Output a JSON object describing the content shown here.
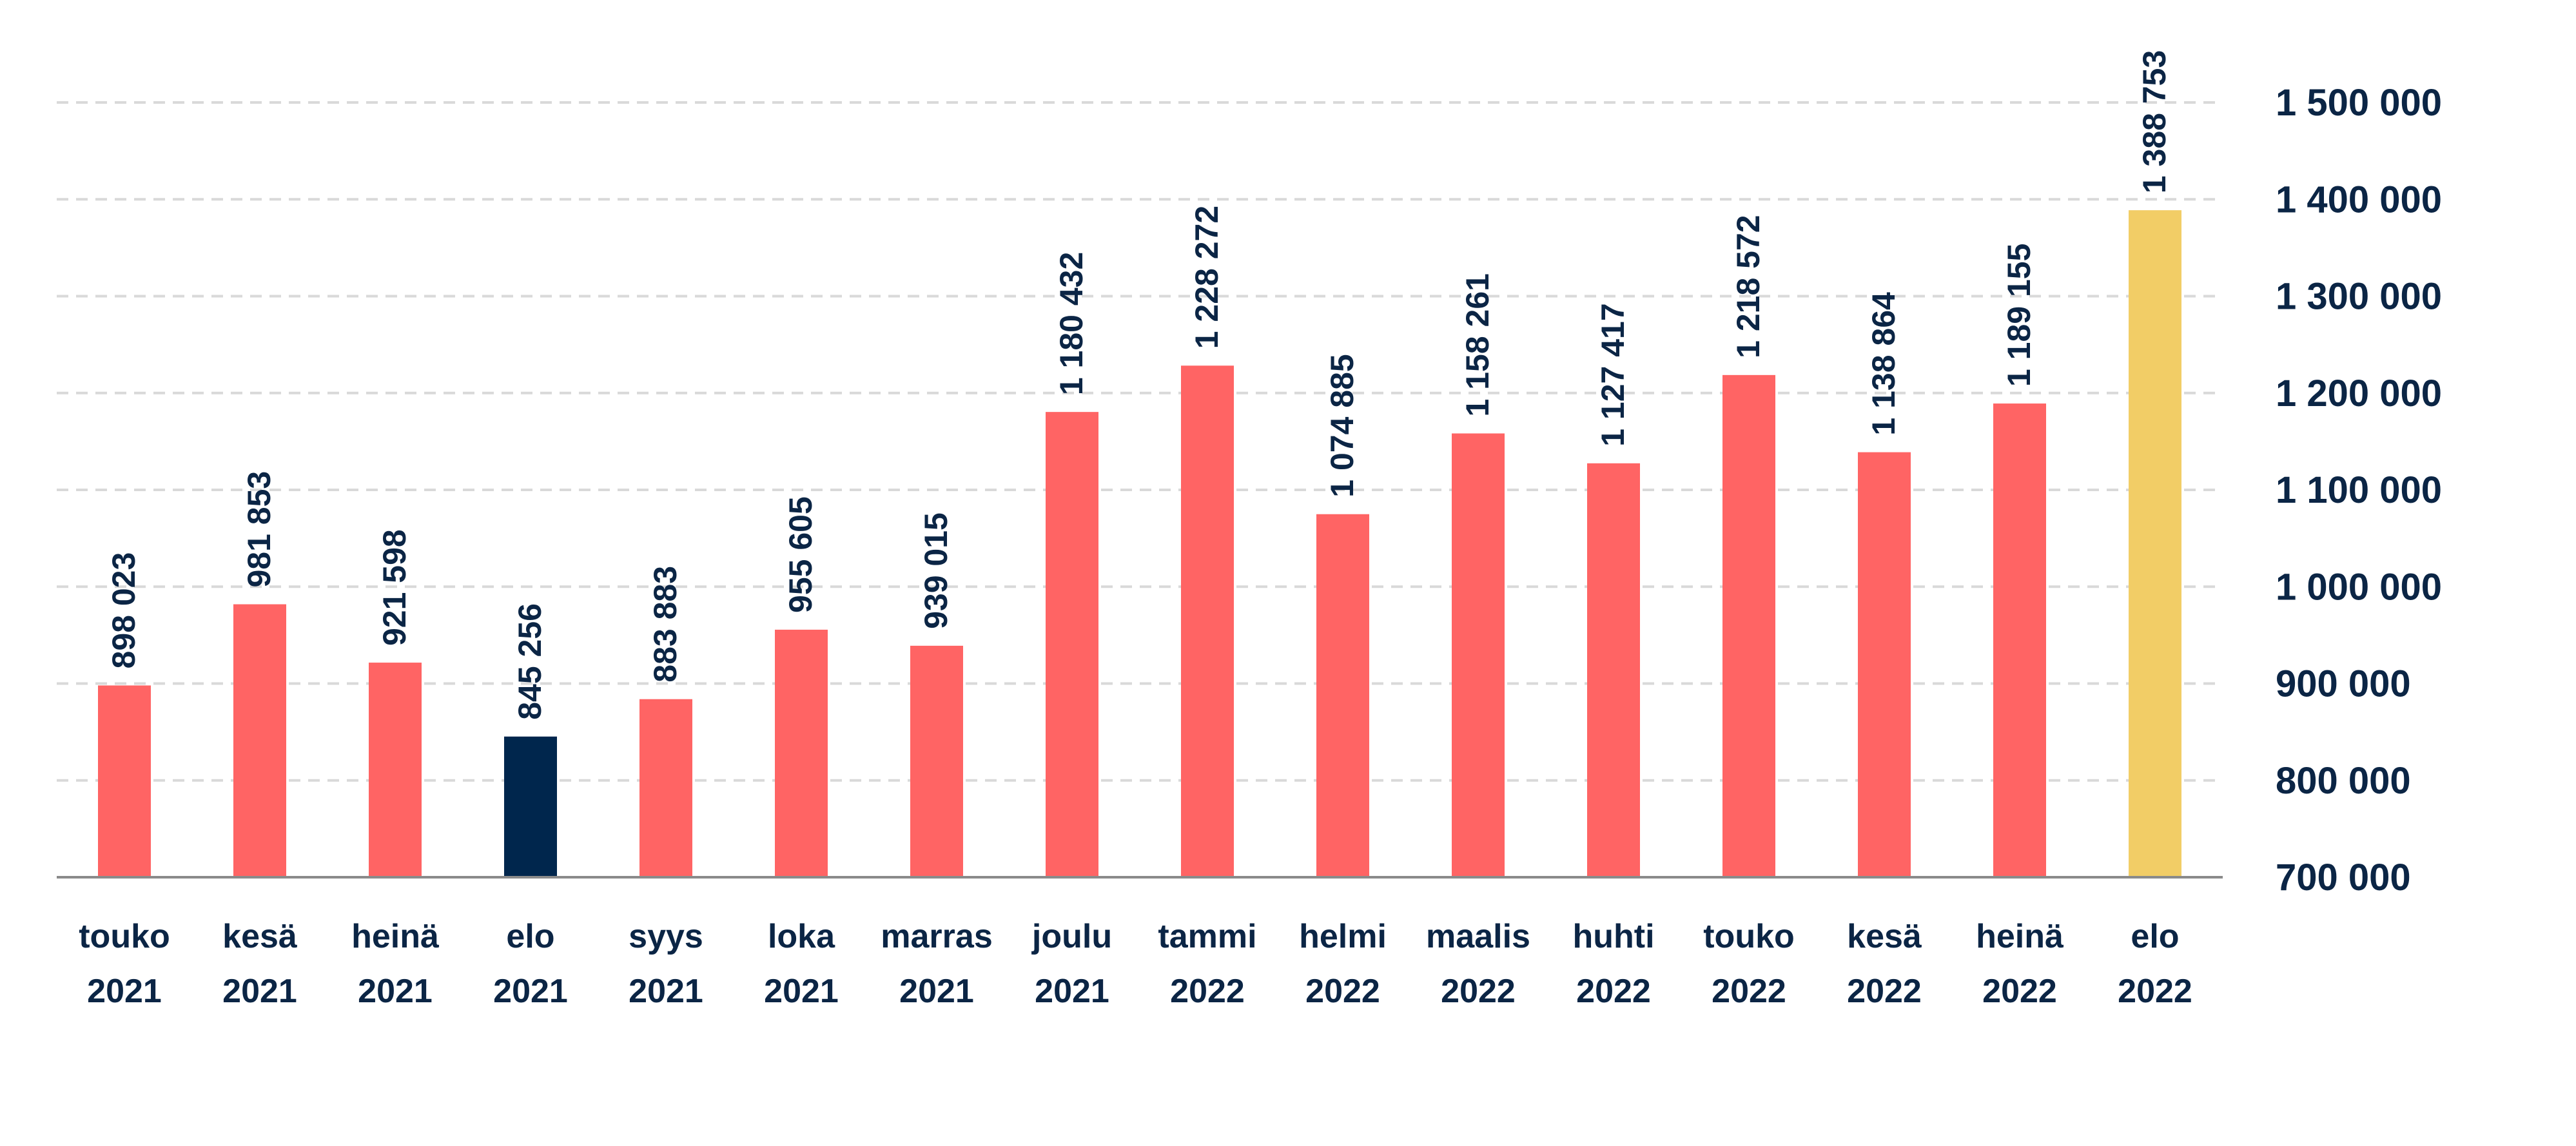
{
  "chart_data": {
    "type": "bar",
    "categories": [
      [
        "touko",
        "2021"
      ],
      [
        "kesä",
        "2021"
      ],
      [
        "heinä",
        "2021"
      ],
      [
        "elo",
        "2021"
      ],
      [
        "syys",
        "2021"
      ],
      [
        "loka",
        "2021"
      ],
      [
        "marras",
        "2021"
      ],
      [
        "joulu",
        "2021"
      ],
      [
        "tammi",
        "2022"
      ],
      [
        "helmi",
        "2022"
      ],
      [
        "maalis",
        "2022"
      ],
      [
        "huhti",
        "2022"
      ],
      [
        "touko",
        "2022"
      ],
      [
        "kesä",
        "2022"
      ],
      [
        "heinä",
        "2022"
      ],
      [
        "elo",
        "2022"
      ]
    ],
    "values": [
      898023,
      981853,
      921598,
      845256,
      883883,
      955605,
      939015,
      1180432,
      1228272,
      1074885,
      1158261,
      1127417,
      1218572,
      1138864,
      1189155,
      1388753
    ],
    "value_labels": [
      "898 023",
      "981 853",
      "921 598",
      "845 256",
      "883 883",
      "955 605",
      "939 015",
      "1 180 432",
      "1 228 272",
      "1 074 885",
      "1 158 261",
      "1 127 417",
      "1 218 572",
      "1 138 864",
      "1 189 155",
      "1 388 753"
    ],
    "bar_colors": [
      "#ff6464",
      "#ff6464",
      "#ff6464",
      "#00264d",
      "#ff6464",
      "#ff6464",
      "#ff6464",
      "#ff6464",
      "#ff6464",
      "#ff6464",
      "#ff6464",
      "#ff6464",
      "#ff6464",
      "#ff6464",
      "#ff6464",
      "#f2cd66"
    ],
    "ylim": [
      700000,
      1500000
    ],
    "yticks": [
      700000,
      800000,
      900000,
      1000000,
      1100000,
      1200000,
      1300000,
      1400000,
      1500000
    ],
    "ytick_labels": [
      "700 000",
      "800 000",
      "900 000",
      "1 000 000",
      "1 100 000",
      "1 200 000",
      "1 300 000",
      "1 400 000",
      "1 500 000"
    ],
    "y_axis_side": "right",
    "grid": "dashed-horizontal",
    "title": "",
    "xlabel": "",
    "ylabel": "",
    "colors": {
      "text": "#0b2545",
      "grid": "#d9d9d9",
      "axis": "#8a8a8a"
    }
  }
}
